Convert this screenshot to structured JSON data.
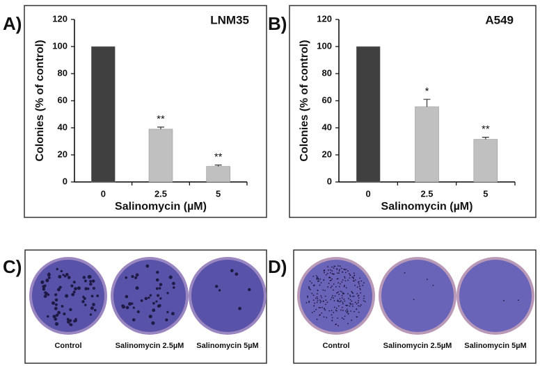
{
  "chart_data": [
    {
      "type": "bar",
      "panel": "A)",
      "title": "LNM35",
      "y_label": "Colonies (% of control)",
      "x_label": "Salinomycin (µM)",
      "categories": [
        "0",
        "2.5",
        "5"
      ],
      "values": [
        100,
        39,
        11.5
      ],
      "errors": [
        null,
        1.5,
        1
      ],
      "colors": [
        "#404040",
        "#c0c0c0",
        "#c0c0c0"
      ],
      "annotations": [
        {
          "index": 1,
          "text": "**"
        },
        {
          "index": 2,
          "text": "**"
        }
      ],
      "ylim": [
        0,
        120
      ],
      "yticks": [
        0,
        20,
        40,
        60,
        80,
        100,
        120
      ]
    },
    {
      "type": "bar",
      "panel": "B)",
      "title": "A549",
      "y_label": "Colonies (% of control)",
      "x_label": "Salinomycin (µM)",
      "categories": [
        "0",
        "2.5",
        "5"
      ],
      "values": [
        100,
        55.5,
        31.5
      ],
      "errors": [
        null,
        5.5,
        1.5
      ],
      "colors": [
        "#404040",
        "#c0c0c0",
        "#c0c0c0"
      ],
      "annotations": [
        {
          "index": 1,
          "text": "*"
        },
        {
          "index": 2,
          "text": "**"
        }
      ],
      "ylim": [
        0,
        120
      ],
      "yticks": [
        0,
        20,
        40,
        60,
        80,
        100,
        120
      ]
    }
  ],
  "images": [
    {
      "panel": "C)",
      "captions": [
        "Control",
        "Salinomycin 2.5µM",
        "Salinomycin 5µM"
      ]
    },
    {
      "panel": "D)",
      "captions": [
        "Control",
        "Salinomycin 2.5µM",
        "Salinomycin 5µM"
      ]
    }
  ]
}
